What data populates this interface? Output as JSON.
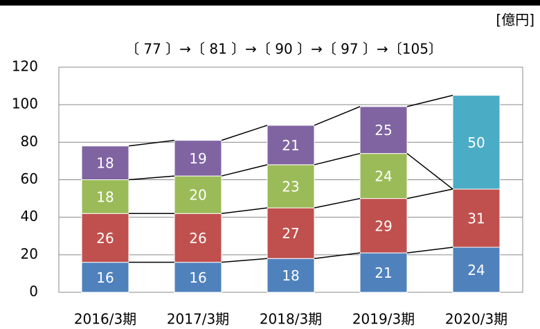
{
  "chart_data": {
    "type": "stacked_bar",
    "unit_label": "[億円]",
    "annotation": "〔 77 〕→〔 81 〕→〔 90 〕→〔 97 〕→〔105〕",
    "categories": [
      "2016/3期",
      "2017/3期",
      "2018/3期",
      "2019/3期",
      "2020/3期"
    ],
    "series": [
      {
        "color": "#4f81bd",
        "values": [
          16,
          16,
          18,
          21,
          24
        ]
      },
      {
        "color": "#c0504d",
        "values": [
          26,
          26,
          27,
          29,
          31
        ]
      },
      {
        "color": "#9bbb59",
        "values": [
          18,
          20,
          23,
          24,
          null
        ]
      },
      {
        "color": "#8064a2",
        "values": [
          18,
          19,
          21,
          25,
          null
        ]
      },
      {
        "color": "#4bacc6",
        "values": [
          null,
          null,
          null,
          null,
          50
        ]
      }
    ],
    "ylim": [
      0,
      120
    ],
    "yticks": [
      0,
      20,
      40,
      60,
      80,
      100,
      120
    ],
    "grid": true
  }
}
